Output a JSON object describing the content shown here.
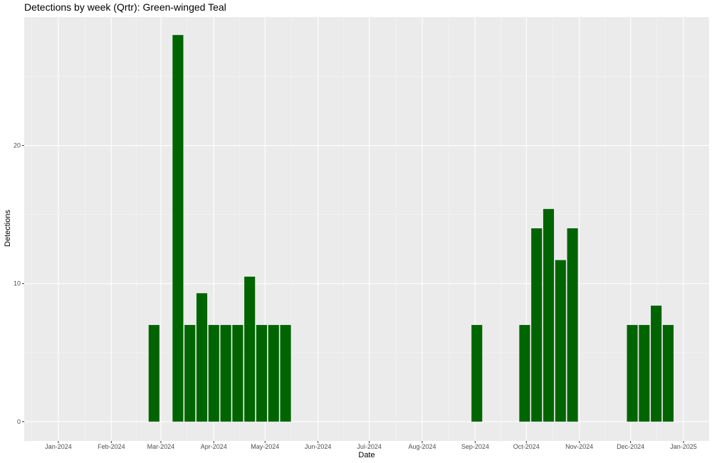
{
  "chart_data": {
    "type": "bar",
    "title": "Detections by week (Qrtr): Green-winged Teal",
    "xlabel": "Date",
    "ylabel": "Detections",
    "x_ticks": [
      "Jan-2024",
      "Feb-2024",
      "Mar-2024",
      "Apr-2024",
      "May-2024",
      "Jun-2024",
      "Jul-2024",
      "Aug-2024",
      "Sep-2024",
      "Oct-2024",
      "Nov-2024",
      "Dec-2024",
      "Jan-2025"
    ],
    "y_ticks": [
      0,
      10,
      20
    ],
    "ylim": [
      -1.4,
      29.3
    ],
    "xlim": [
      "2023-12-12",
      "2025-01-16"
    ],
    "grid": true,
    "background_color": "#EBEBEB",
    "bar_color": "#006400",
    "weeks": [
      "2024-02-26",
      "2024-03-11",
      "2024-03-18",
      "2024-03-25",
      "2024-04-01",
      "2024-04-08",
      "2024-04-15",
      "2024-04-22",
      "2024-04-29",
      "2024-05-06",
      "2024-05-13",
      "2024-09-02",
      "2024-09-30",
      "2024-10-07",
      "2024-10-14",
      "2024-10-21",
      "2024-10-28",
      "2024-12-02",
      "2024-12-09",
      "2024-12-16",
      "2024-12-23"
    ],
    "values": [
      7,
      28,
      7,
      9.3,
      7,
      7,
      7,
      10.5,
      7,
      7,
      7,
      7,
      7,
      14,
      15.4,
      11.7,
      14,
      7,
      7,
      8.4,
      7
    ]
  }
}
